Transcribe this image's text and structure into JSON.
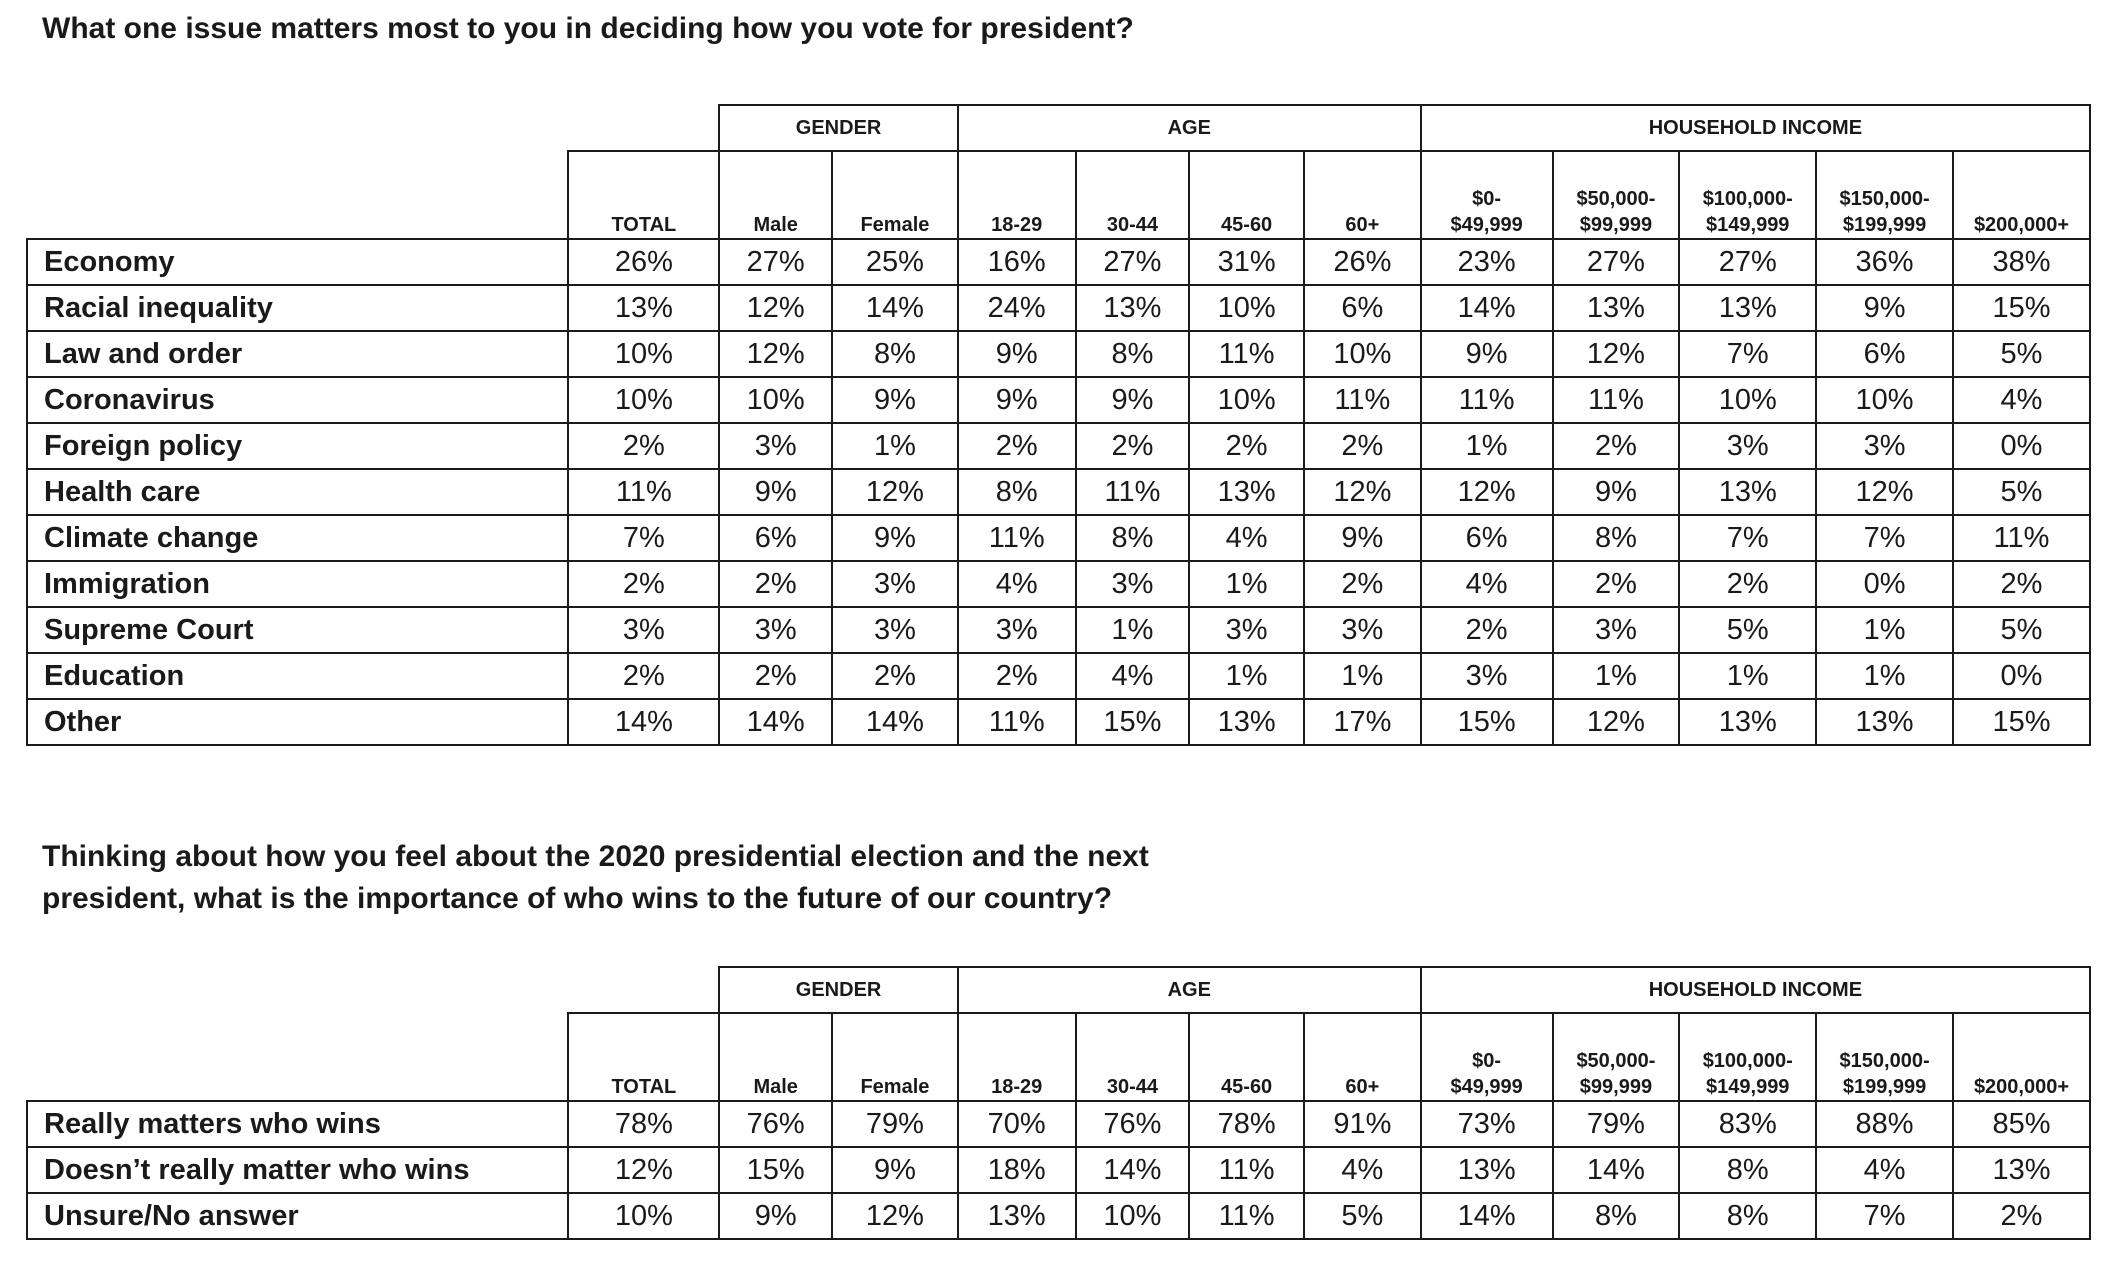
{
  "q1": {
    "title": "What one issue matters most to you in deciding how you vote for president?",
    "groups": [
      "GENDER",
      "AGE",
      "HOUSEHOLD INCOME"
    ],
    "columns": [
      "TOTAL",
      "Male",
      "Female",
      "18-29",
      "30-44",
      "45-60",
      "60+",
      "$0-\n$49,999",
      "$50,000-\n$99,999",
      "$100,000-\n$149,999",
      "$150,000-\n$199,999",
      "$200,000+"
    ],
    "rows": [
      {
        "label": "Economy",
        "values": [
          "26%",
          "27%",
          "25%",
          "16%",
          "27%",
          "31%",
          "26%",
          "23%",
          "27%",
          "27%",
          "36%",
          "38%"
        ]
      },
      {
        "label": "Racial inequality",
        "values": [
          "13%",
          "12%",
          "14%",
          "24%",
          "13%",
          "10%",
          "6%",
          "14%",
          "13%",
          "13%",
          "9%",
          "15%"
        ]
      },
      {
        "label": "Law and order",
        "values": [
          "10%",
          "12%",
          "8%",
          "9%",
          "8%",
          "11%",
          "10%",
          "9%",
          "12%",
          "7%",
          "6%",
          "5%"
        ]
      },
      {
        "label": "Coronavirus",
        "values": [
          "10%",
          "10%",
          "9%",
          "9%",
          "9%",
          "10%",
          "11%",
          "11%",
          "11%",
          "10%",
          "10%",
          "4%"
        ]
      },
      {
        "label": "Foreign policy",
        "values": [
          "2%",
          "3%",
          "1%",
          "2%",
          "2%",
          "2%",
          "2%",
          "1%",
          "2%",
          "3%",
          "3%",
          "0%"
        ]
      },
      {
        "label": "Health care",
        "values": [
          "11%",
          "9%",
          "12%",
          "8%",
          "11%",
          "13%",
          "12%",
          "12%",
          "9%",
          "13%",
          "12%",
          "5%"
        ]
      },
      {
        "label": "Climate change",
        "values": [
          "7%",
          "6%",
          "9%",
          "11%",
          "8%",
          "4%",
          "9%",
          "6%",
          "8%",
          "7%",
          "7%",
          "11%"
        ]
      },
      {
        "label": "Immigration",
        "values": [
          "2%",
          "2%",
          "3%",
          "4%",
          "3%",
          "1%",
          "2%",
          "4%",
          "2%",
          "2%",
          "0%",
          "2%"
        ]
      },
      {
        "label": "Supreme Court",
        "values": [
          "3%",
          "3%",
          "3%",
          "3%",
          "1%",
          "3%",
          "3%",
          "2%",
          "3%",
          "5%",
          "1%",
          "5%"
        ]
      },
      {
        "label": "Education",
        "values": [
          "2%",
          "2%",
          "2%",
          "2%",
          "4%",
          "1%",
          "1%",
          "3%",
          "1%",
          "1%",
          "1%",
          "0%"
        ]
      },
      {
        "label": "Other",
        "values": [
          "14%",
          "14%",
          "14%",
          "11%",
          "15%",
          "13%",
          "17%",
          "15%",
          "12%",
          "13%",
          "13%",
          "15%"
        ]
      }
    ]
  },
  "q2": {
    "title_line1": "Thinking about how you feel about the 2020 presidential election and the next",
    "title_line2": "president, what is the importance of who wins to the future of our country?",
    "groups": [
      "GENDER",
      "AGE",
      "HOUSEHOLD INCOME"
    ],
    "columns": [
      "TOTAL",
      "Male",
      "Female",
      "18-29",
      "30-44",
      "45-60",
      "60+",
      "$0-\n$49,999",
      "$50,000-\n$99,999",
      "$100,000-\n$149,999",
      "$150,000-\n$199,999",
      "$200,000+"
    ],
    "rows": [
      {
        "label": "Really matters who wins",
        "values": [
          "78%",
          "76%",
          "79%",
          "70%",
          "76%",
          "78%",
          "91%",
          "73%",
          "79%",
          "83%",
          "88%",
          "85%"
        ]
      },
      {
        "label": "Doesn’t really matter who wins",
        "values": [
          "12%",
          "15%",
          "9%",
          "18%",
          "14%",
          "11%",
          "4%",
          "13%",
          "14%",
          "8%",
          "4%",
          "13%"
        ]
      },
      {
        "label": "Unsure/No answer",
        "values": [
          "10%",
          "9%",
          "12%",
          "13%",
          "10%",
          "11%",
          "5%",
          "14%",
          "8%",
          "8%",
          "7%",
          "2%"
        ]
      }
    ]
  }
}
